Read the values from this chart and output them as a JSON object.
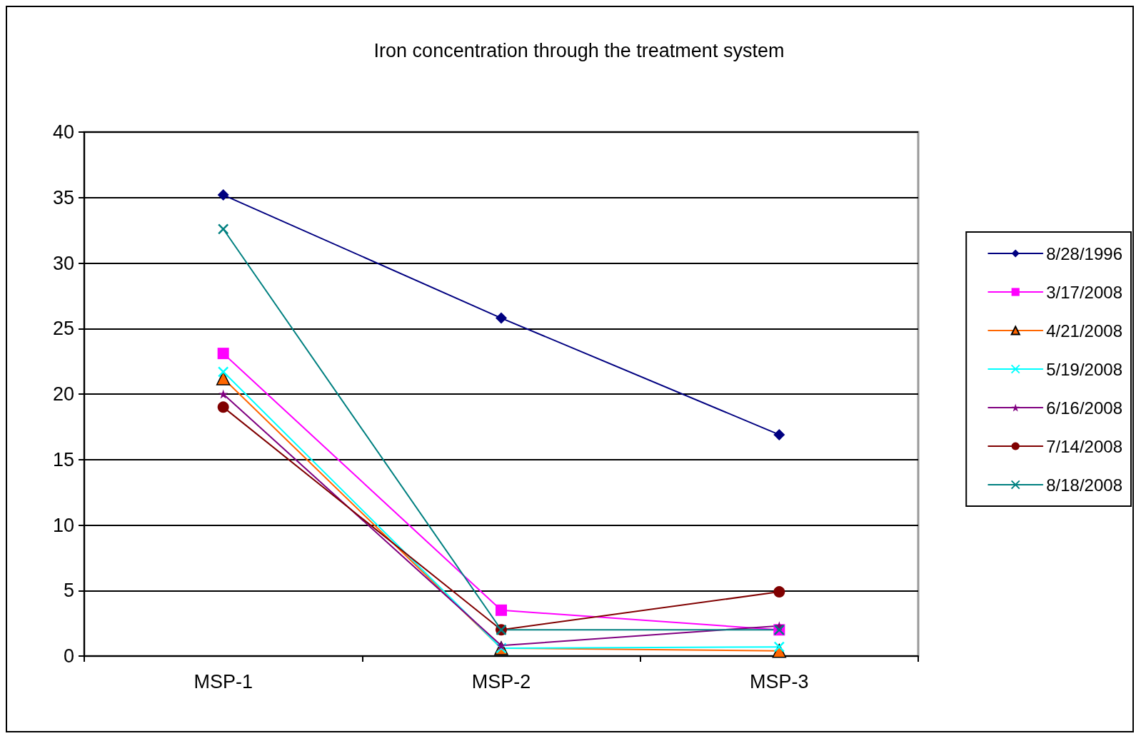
{
  "chart_data": {
    "type": "line",
    "title": "Iron concentration through the treatment system",
    "categories": [
      "MSP-1",
      "MSP-2",
      "MSP-3"
    ],
    "series": [
      {
        "name": "8/28/1996",
        "color": "#000080",
        "marker": "diamond",
        "values": [
          35.2,
          25.8,
          16.9
        ]
      },
      {
        "name": "3/17/2008",
        "color": "#ff00ff",
        "marker": "square",
        "values": [
          23.1,
          3.5,
          2.0
        ]
      },
      {
        "name": "4/21/2008",
        "color": "#ff6600",
        "marker": "triangle",
        "values": [
          21.2,
          0.6,
          0.4
        ]
      },
      {
        "name": "5/19/2008",
        "color": "#00ffff",
        "marker": "cross",
        "values": [
          21.7,
          0.6,
          0.7
        ]
      },
      {
        "name": "6/16/2008",
        "color": "#800080",
        "marker": "star",
        "values": [
          20.0,
          0.8,
          2.3
        ]
      },
      {
        "name": "7/14/2008",
        "color": "#800000",
        "marker": "circle",
        "values": [
          19.0,
          2.0,
          4.9
        ]
      },
      {
        "name": "8/18/2008",
        "color": "#008080",
        "marker": "cross",
        "values": [
          32.6,
          2.0,
          2.0
        ]
      }
    ],
    "ylim": [
      0,
      40
    ],
    "yticks": [
      0,
      5,
      10,
      15,
      20,
      25,
      30,
      35,
      40
    ],
    "grid": "y",
    "legend": "right",
    "line_style": "solid"
  }
}
